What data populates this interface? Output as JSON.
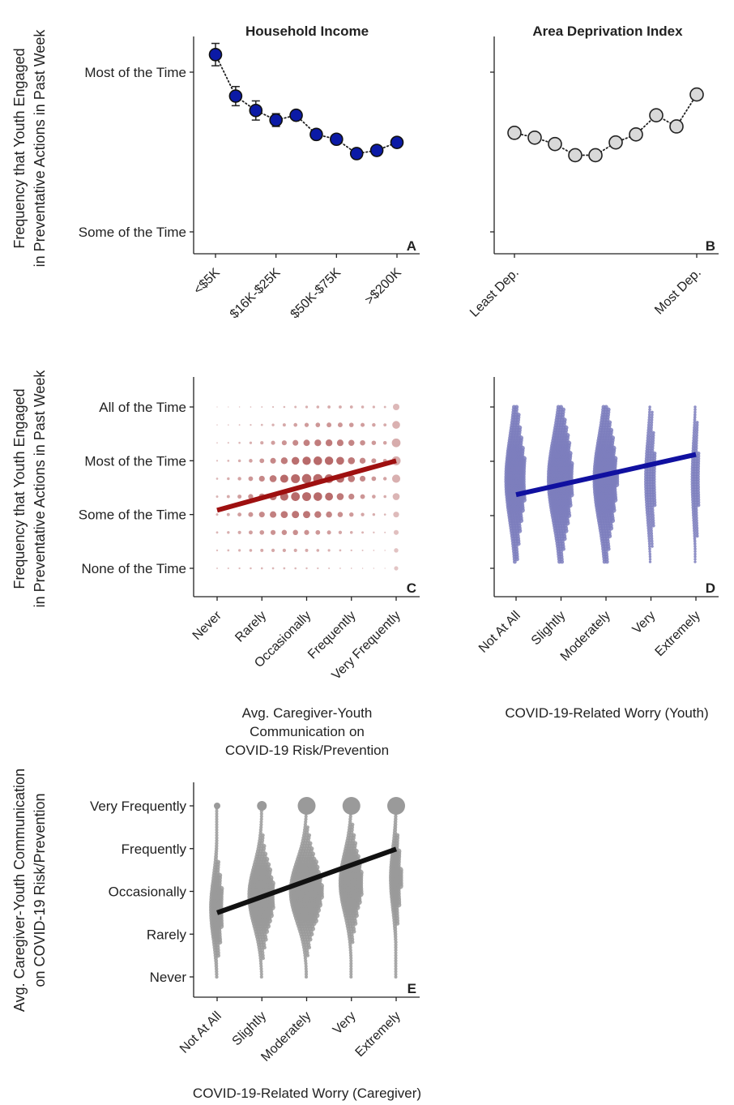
{
  "chart_data": [
    {
      "id": "A",
      "type": "line",
      "title": "Household Income",
      "corner_label": "A",
      "ylabel": "Frequency that Youth Engaged in Preventative Actions in Past Week",
      "ylabel_lines": [
        "Frequency that Youth Engaged",
        "in Preventative Actions in Past Week"
      ],
      "y_ticks": [
        "Some of the Time",
        "Most of the Time"
      ],
      "y_tick_values": [
        3,
        4
      ],
      "ylim": [
        2.85,
        4.12
      ],
      "x_tick_labels": [
        "<$5K",
        "$16K-$25K",
        "$50K-$75K",
        ">$200K"
      ],
      "x_tick_positions": [
        1,
        4,
        7,
        10
      ],
      "n_points": 10,
      "x": [
        1,
        2,
        3,
        4,
        5,
        6,
        7,
        8,
        9,
        10
      ],
      "values": [
        4.11,
        3.85,
        3.76,
        3.7,
        3.73,
        3.61,
        3.58,
        3.49,
        3.51,
        3.56
      ],
      "errors": [
        0.07,
        0.06,
        0.06,
        0.04,
        0.03,
        0.02,
        0.02,
        0.02,
        0.02,
        0.02
      ],
      "marker_color": "#0b1aa6",
      "line_style": "dotted"
    },
    {
      "id": "B",
      "type": "line",
      "title": "Area Deprivation Index",
      "corner_label": "B",
      "ylim": [
        2.85,
        4.12
      ],
      "x_tick_labels": [
        "Least Dep.",
        "Most Dep."
      ],
      "x_tick_positions": [
        1,
        10
      ],
      "x": [
        1,
        2,
        3,
        4,
        5,
        6,
        7,
        8,
        9,
        10
      ],
      "values": [
        3.62,
        3.59,
        3.55,
        3.48,
        3.48,
        3.56,
        3.61,
        3.73,
        3.66,
        3.86
      ],
      "errors": [
        0.03,
        0.03,
        0.03,
        0.03,
        0.03,
        0.03,
        0.03,
        0.04,
        0.04,
        0.04
      ],
      "marker_color": "#d9d9d9",
      "line_style": "dotted"
    },
    {
      "id": "C",
      "type": "scatter",
      "corner_label": "C",
      "ylabel": "Frequency that Youth Engaged in Preventative Actions in Past Week",
      "ylabel_lines": [
        "Frequency that Youth Engaged",
        "in Preventative Actions in Past Week"
      ],
      "y_ticks": [
        "None of the Time",
        "Some of the Time",
        "Most of the Time",
        "All of the Time"
      ],
      "y_tick_values": [
        1,
        2,
        3,
        4
      ],
      "x_ticks": [
        "Never",
        "Rarely",
        "Occasionally",
        "Frequently",
        "Very Frequently"
      ],
      "x_tick_values": [
        1,
        2,
        3,
        4,
        5
      ],
      "xlabel": "Avg. Caregiver-Youth Communication on COVID-19 Risk/Prevention",
      "xlabel_lines": [
        "Avg. Caregiver-Youth",
        "Communication on",
        "COVID-19 Risk/Prevention"
      ],
      "xlim": [
        1,
        5
      ],
      "ylim": [
        1,
        4
      ],
      "grid": "bubble grid, x step 0.25, y step 0.333",
      "point_color": "#b05a5a",
      "fit_line": {
        "x": [
          1,
          5
        ],
        "y": [
          2.08,
          3.0
        ]
      },
      "fit_color": "#9e1010"
    },
    {
      "id": "D",
      "type": "scatter",
      "corner_label": "D",
      "x_ticks": [
        "Not At All",
        "Slightly",
        "Moderately",
        "Very",
        "Extremely"
      ],
      "x_tick_values": [
        1,
        2,
        3,
        4,
        5
      ],
      "xlabel": "COVID-19-Related Worry (Youth)",
      "xlim": [
        1,
        5
      ],
      "ylim": [
        1,
        4
      ],
      "point_color": "#7d7ebd",
      "column_spread": [
        11,
        14,
        13,
        6,
        4
      ],
      "fit_line": {
        "x": [
          1,
          5
        ],
        "y": [
          2.3,
          3.08
        ]
      },
      "fit_color": "#1010a0"
    },
    {
      "id": "E",
      "type": "scatter",
      "corner_label": "E",
      "ylabel": "Avg. Caregiver-Youth Communication on COVID-19 Risk/Prevention",
      "ylabel_lines": [
        "Avg. Caregiver-Youth Communication",
        "on COVID-19 Risk/Prevention"
      ],
      "y_ticks": [
        "Never",
        "Rarely",
        "Occasionally",
        "Frequently",
        "Very Frequently"
      ],
      "y_tick_values": [
        1,
        2,
        3,
        4,
        5
      ],
      "x_ticks": [
        "Not At All",
        "Slightly",
        "Moderately",
        "Very",
        "Extremely"
      ],
      "x_tick_values": [
        1,
        2,
        3,
        4,
        5
      ],
      "xlabel": "COVID-19-Related Worry (Caregiver)",
      "xlim": [
        1,
        5
      ],
      "ylim": [
        1,
        5
      ],
      "point_color": "#9a9a9a",
      "column_spread": [
        6,
        14,
        18,
        12,
        5
      ],
      "fit_line": {
        "x": [
          1,
          5
        ],
        "y": [
          2.5,
          3.99
        ]
      },
      "fit_color": "#111111"
    }
  ]
}
